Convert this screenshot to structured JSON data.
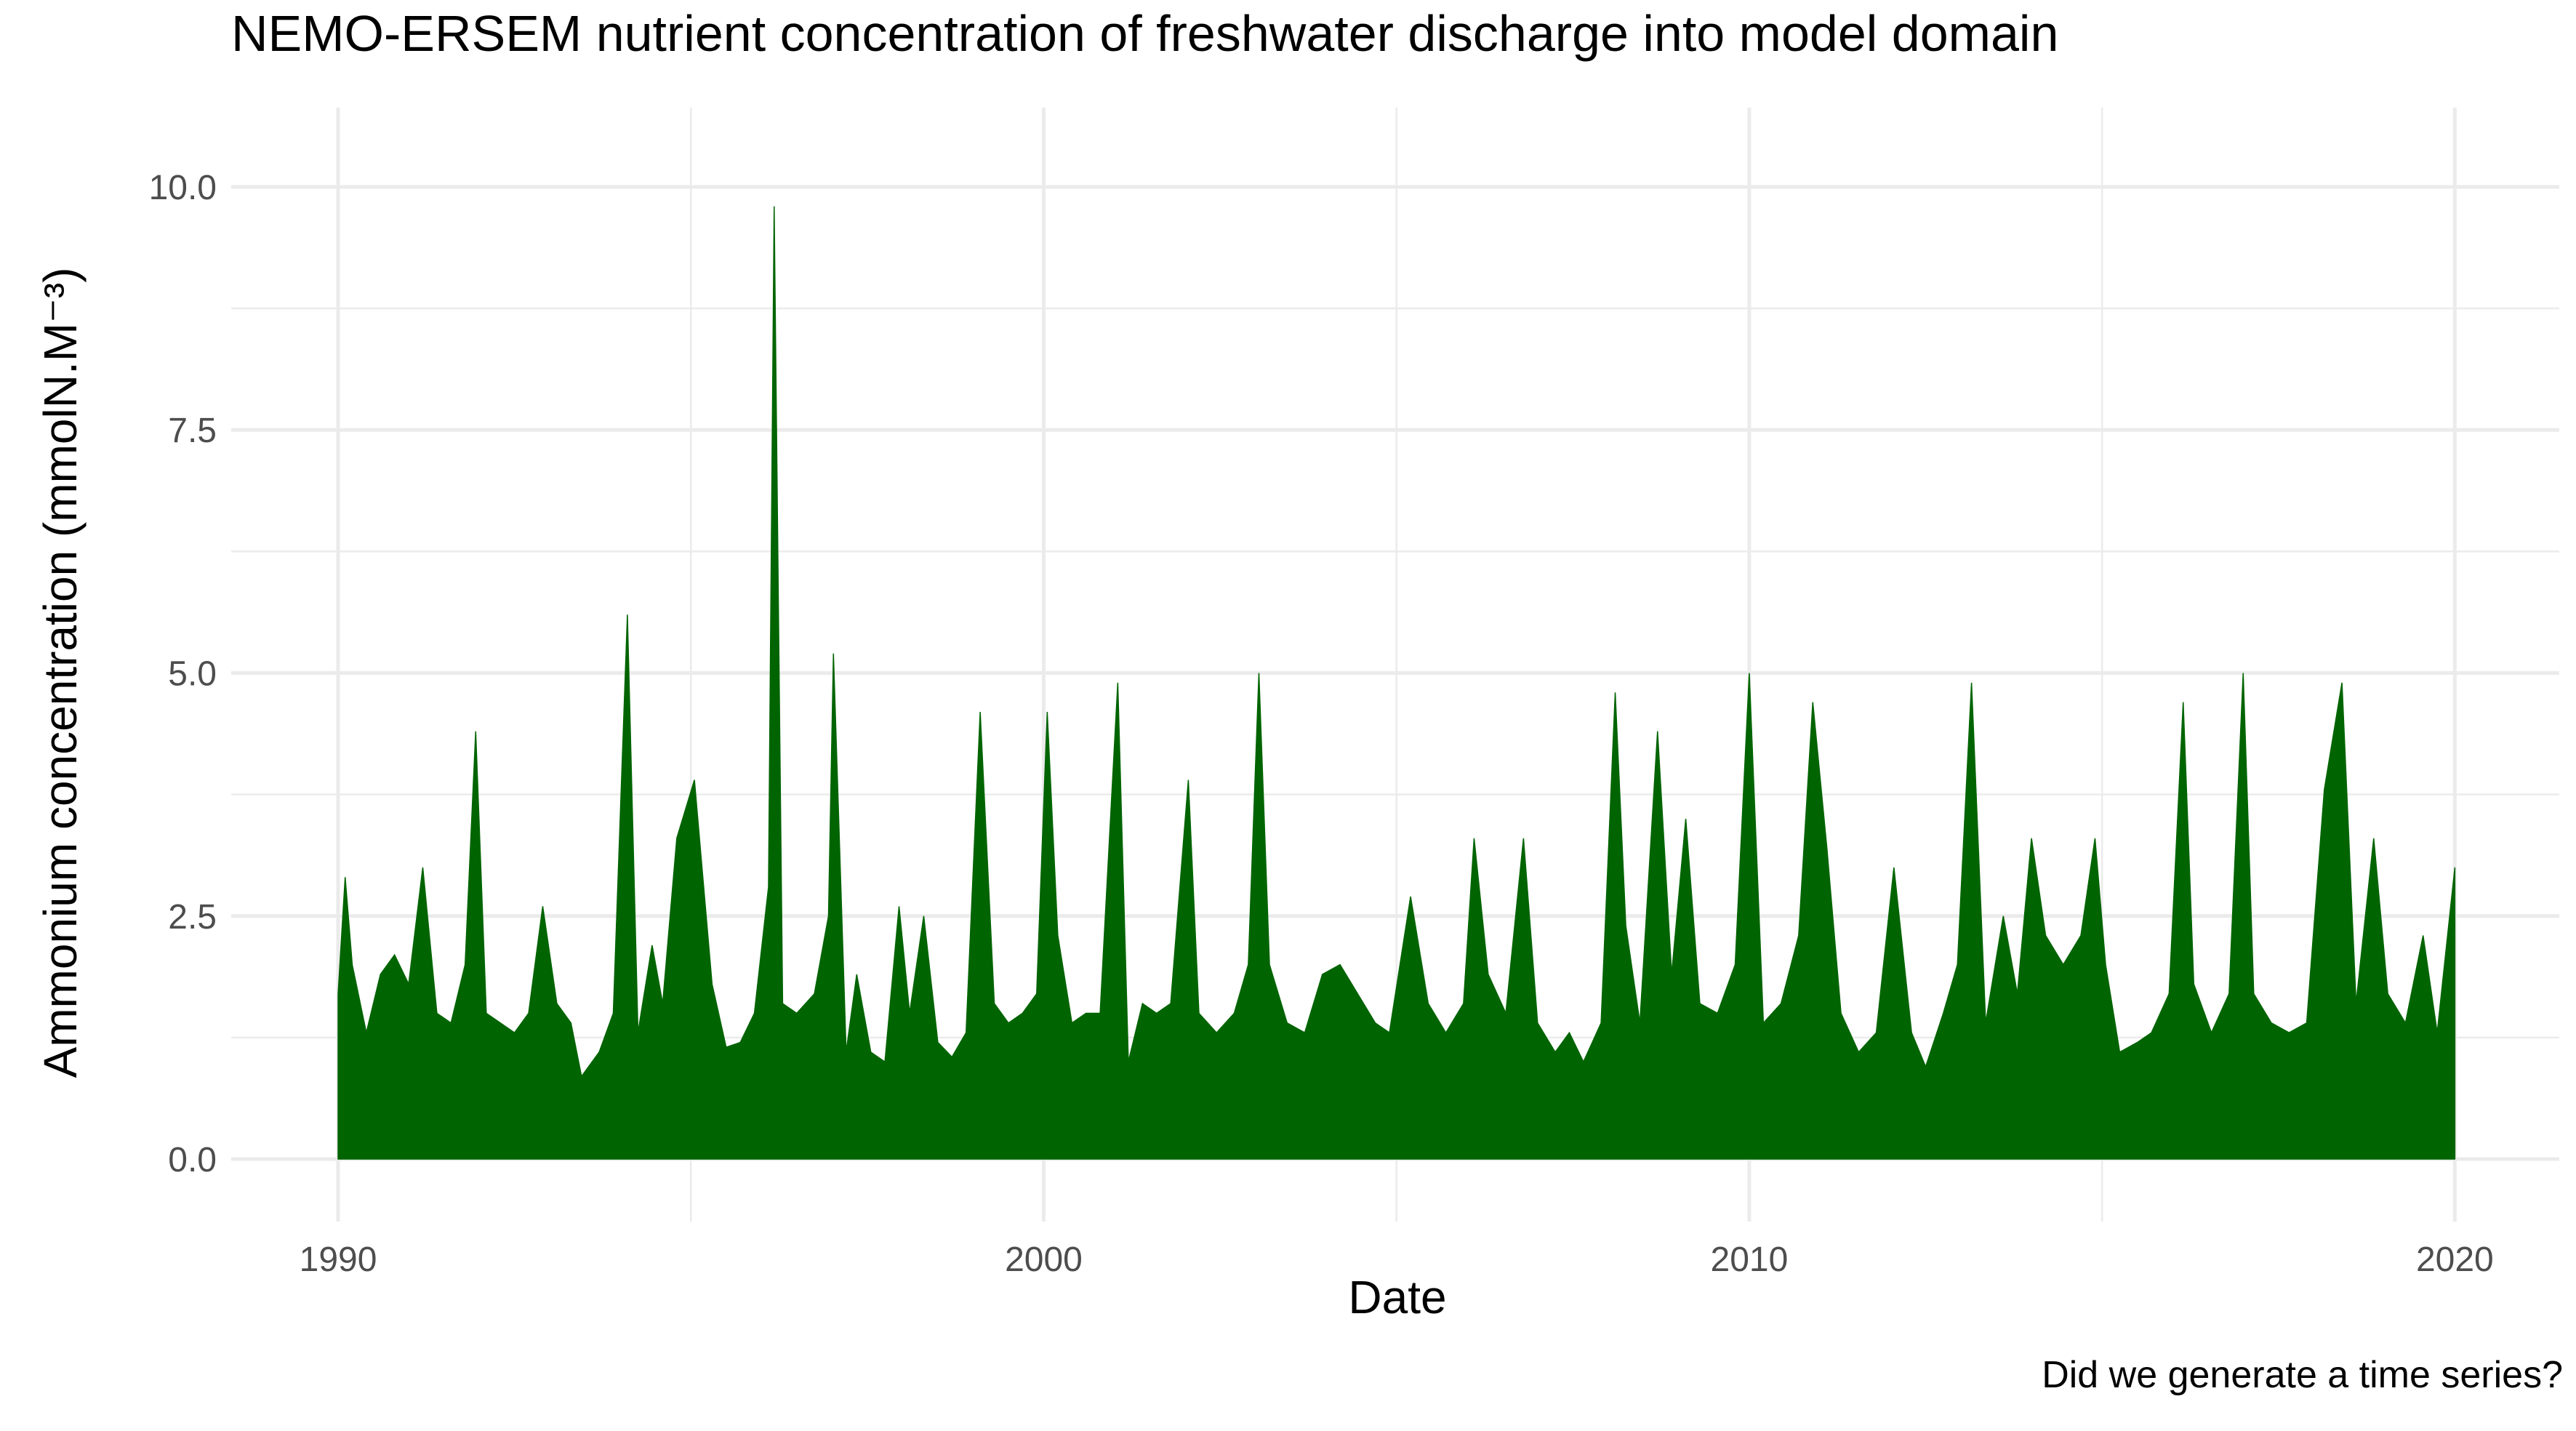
{
  "chart_data": {
    "type": "area",
    "title": "NEMO-ERSEM nutrient concentration of freshwater discharge into model domain",
    "x_label": "Date",
    "y_label": "Ammonium concentration (mmolN.M⁻³)",
    "caption": "Did we generate a time series?",
    "color": "#006400",
    "grid": true,
    "xlim": [
      1988.485,
      2021.48
    ],
    "ylim": [
      -0.643,
      10.815
    ],
    "xticks": [
      1990,
      2000,
      2010,
      2020
    ],
    "xminor_ticks": [
      1995,
      2005,
      2015
    ],
    "yticks": [
      {
        "value": 0,
        "label": "0.0"
      },
      {
        "value": 2.5,
        "label": "2.5"
      },
      {
        "value": 5,
        "label": "5.0"
      },
      {
        "value": 7.5,
        "label": "7.5"
      },
      {
        "value": 10,
        "label": "10.0"
      }
    ],
    "yminor_ticks": [
      1.25,
      3.75,
      6.25,
      8.75
    ],
    "x": [
      1990.0,
      1990.1,
      1990.2,
      1990.4,
      1990.6,
      1990.8,
      1991.0,
      1991.2,
      1991.4,
      1991.6,
      1991.8,
      1991.95,
      1992.1,
      1992.3,
      1992.5,
      1992.7,
      1992.9,
      1993.1,
      1993.3,
      1993.45,
      1993.7,
      1993.9,
      1994.1,
      1994.25,
      1994.45,
      1994.6,
      1994.8,
      1995.05,
      1995.3,
      1995.5,
      1995.7,
      1995.9,
      1996.1,
      1996.18,
      1996.3,
      1996.5,
      1996.75,
      1996.95,
      1997.02,
      1997.2,
      1997.35,
      1997.55,
      1997.75,
      1997.95,
      1998.1,
      1998.3,
      1998.5,
      1998.7,
      1998.9,
      1999.1,
      1999.3,
      1999.5,
      1999.7,
      1999.9,
      2000.05,
      2000.2,
      2000.4,
      2000.6,
      2000.8,
      2001.05,
      2001.2,
      2001.4,
      2001.6,
      2001.8,
      2002.05,
      2002.2,
      2002.45,
      2002.7,
      2002.9,
      2003.05,
      2003.2,
      2003.45,
      2003.7,
      2003.95,
      2004.2,
      2004.45,
      2004.7,
      2004.9,
      2005.2,
      2005.45,
      2005.7,
      2005.95,
      2006.1,
      2006.3,
      2006.55,
      2006.8,
      2007.0,
      2007.25,
      2007.45,
      2007.65,
      2007.9,
      2008.1,
      2008.25,
      2008.45,
      2008.7,
      2008.9,
      2009.1,
      2009.3,
      2009.55,
      2009.8,
      2010.0,
      2010.2,
      2010.45,
      2010.7,
      2010.9,
      2011.1,
      2011.3,
      2011.55,
      2011.8,
      2012.05,
      2012.3,
      2012.5,
      2012.75,
      2012.95,
      2013.15,
      2013.35,
      2013.6,
      2013.8,
      2014.0,
      2014.2,
      2014.45,
      2014.7,
      2014.9,
      2015.05,
      2015.25,
      2015.5,
      2015.7,
      2015.95,
      2016.15,
      2016.3,
      2016.55,
      2016.8,
      2017.0,
      2017.15,
      2017.4,
      2017.65,
      2017.9,
      2018.15,
      2018.4,
      2018.6,
      2018.85,
      2019.05,
      2019.3,
      2019.55,
      2019.75,
      2020.0
    ],
    "values": [
      1.7,
      2.9,
      2.0,
      1.3,
      1.9,
      2.1,
      1.8,
      3.0,
      1.5,
      1.4,
      2.0,
      4.4,
      1.5,
      1.4,
      1.3,
      1.5,
      2.6,
      1.6,
      1.4,
      0.85,
      1.1,
      1.5,
      5.6,
      1.3,
      2.2,
      1.6,
      3.3,
      3.9,
      1.8,
      1.15,
      1.2,
      1.5,
      2.8,
      9.8,
      1.6,
      1.5,
      1.7,
      2.5,
      5.2,
      1.1,
      1.9,
      1.1,
      1.0,
      2.6,
      1.5,
      2.5,
      1.2,
      1.05,
      1.3,
      4.6,
      1.6,
      1.4,
      1.5,
      1.7,
      4.6,
      2.3,
      1.4,
      1.5,
      1.5,
      4.9,
      1.0,
      1.6,
      1.5,
      1.6,
      3.9,
      1.5,
      1.3,
      1.5,
      2.0,
      5.0,
      2.0,
      1.4,
      1.3,
      1.9,
      2.0,
      1.7,
      1.4,
      1.3,
      2.7,
      1.6,
      1.3,
      1.6,
      3.3,
      1.9,
      1.5,
      3.3,
      1.4,
      1.1,
      1.3,
      1.0,
      1.4,
      4.8,
      2.4,
      1.4,
      4.4,
      1.9,
      3.5,
      1.6,
      1.5,
      2.0,
      5.0,
      1.4,
      1.6,
      2.3,
      4.7,
      3.2,
      1.5,
      1.1,
      1.3,
      3.0,
      1.3,
      0.95,
      1.5,
      2.0,
      4.9,
      1.4,
      2.5,
      1.7,
      3.3,
      2.3,
      2.0,
      2.3,
      3.3,
      2.0,
      1.1,
      1.2,
      1.3,
      1.7,
      4.7,
      1.8,
      1.3,
      1.7,
      5.0,
      1.7,
      1.4,
      1.3,
      1.4,
      3.8,
      4.9,
      1.6,
      3.3,
      1.7,
      1.4,
      2.3,
      1.3,
      3.0
    ]
  }
}
